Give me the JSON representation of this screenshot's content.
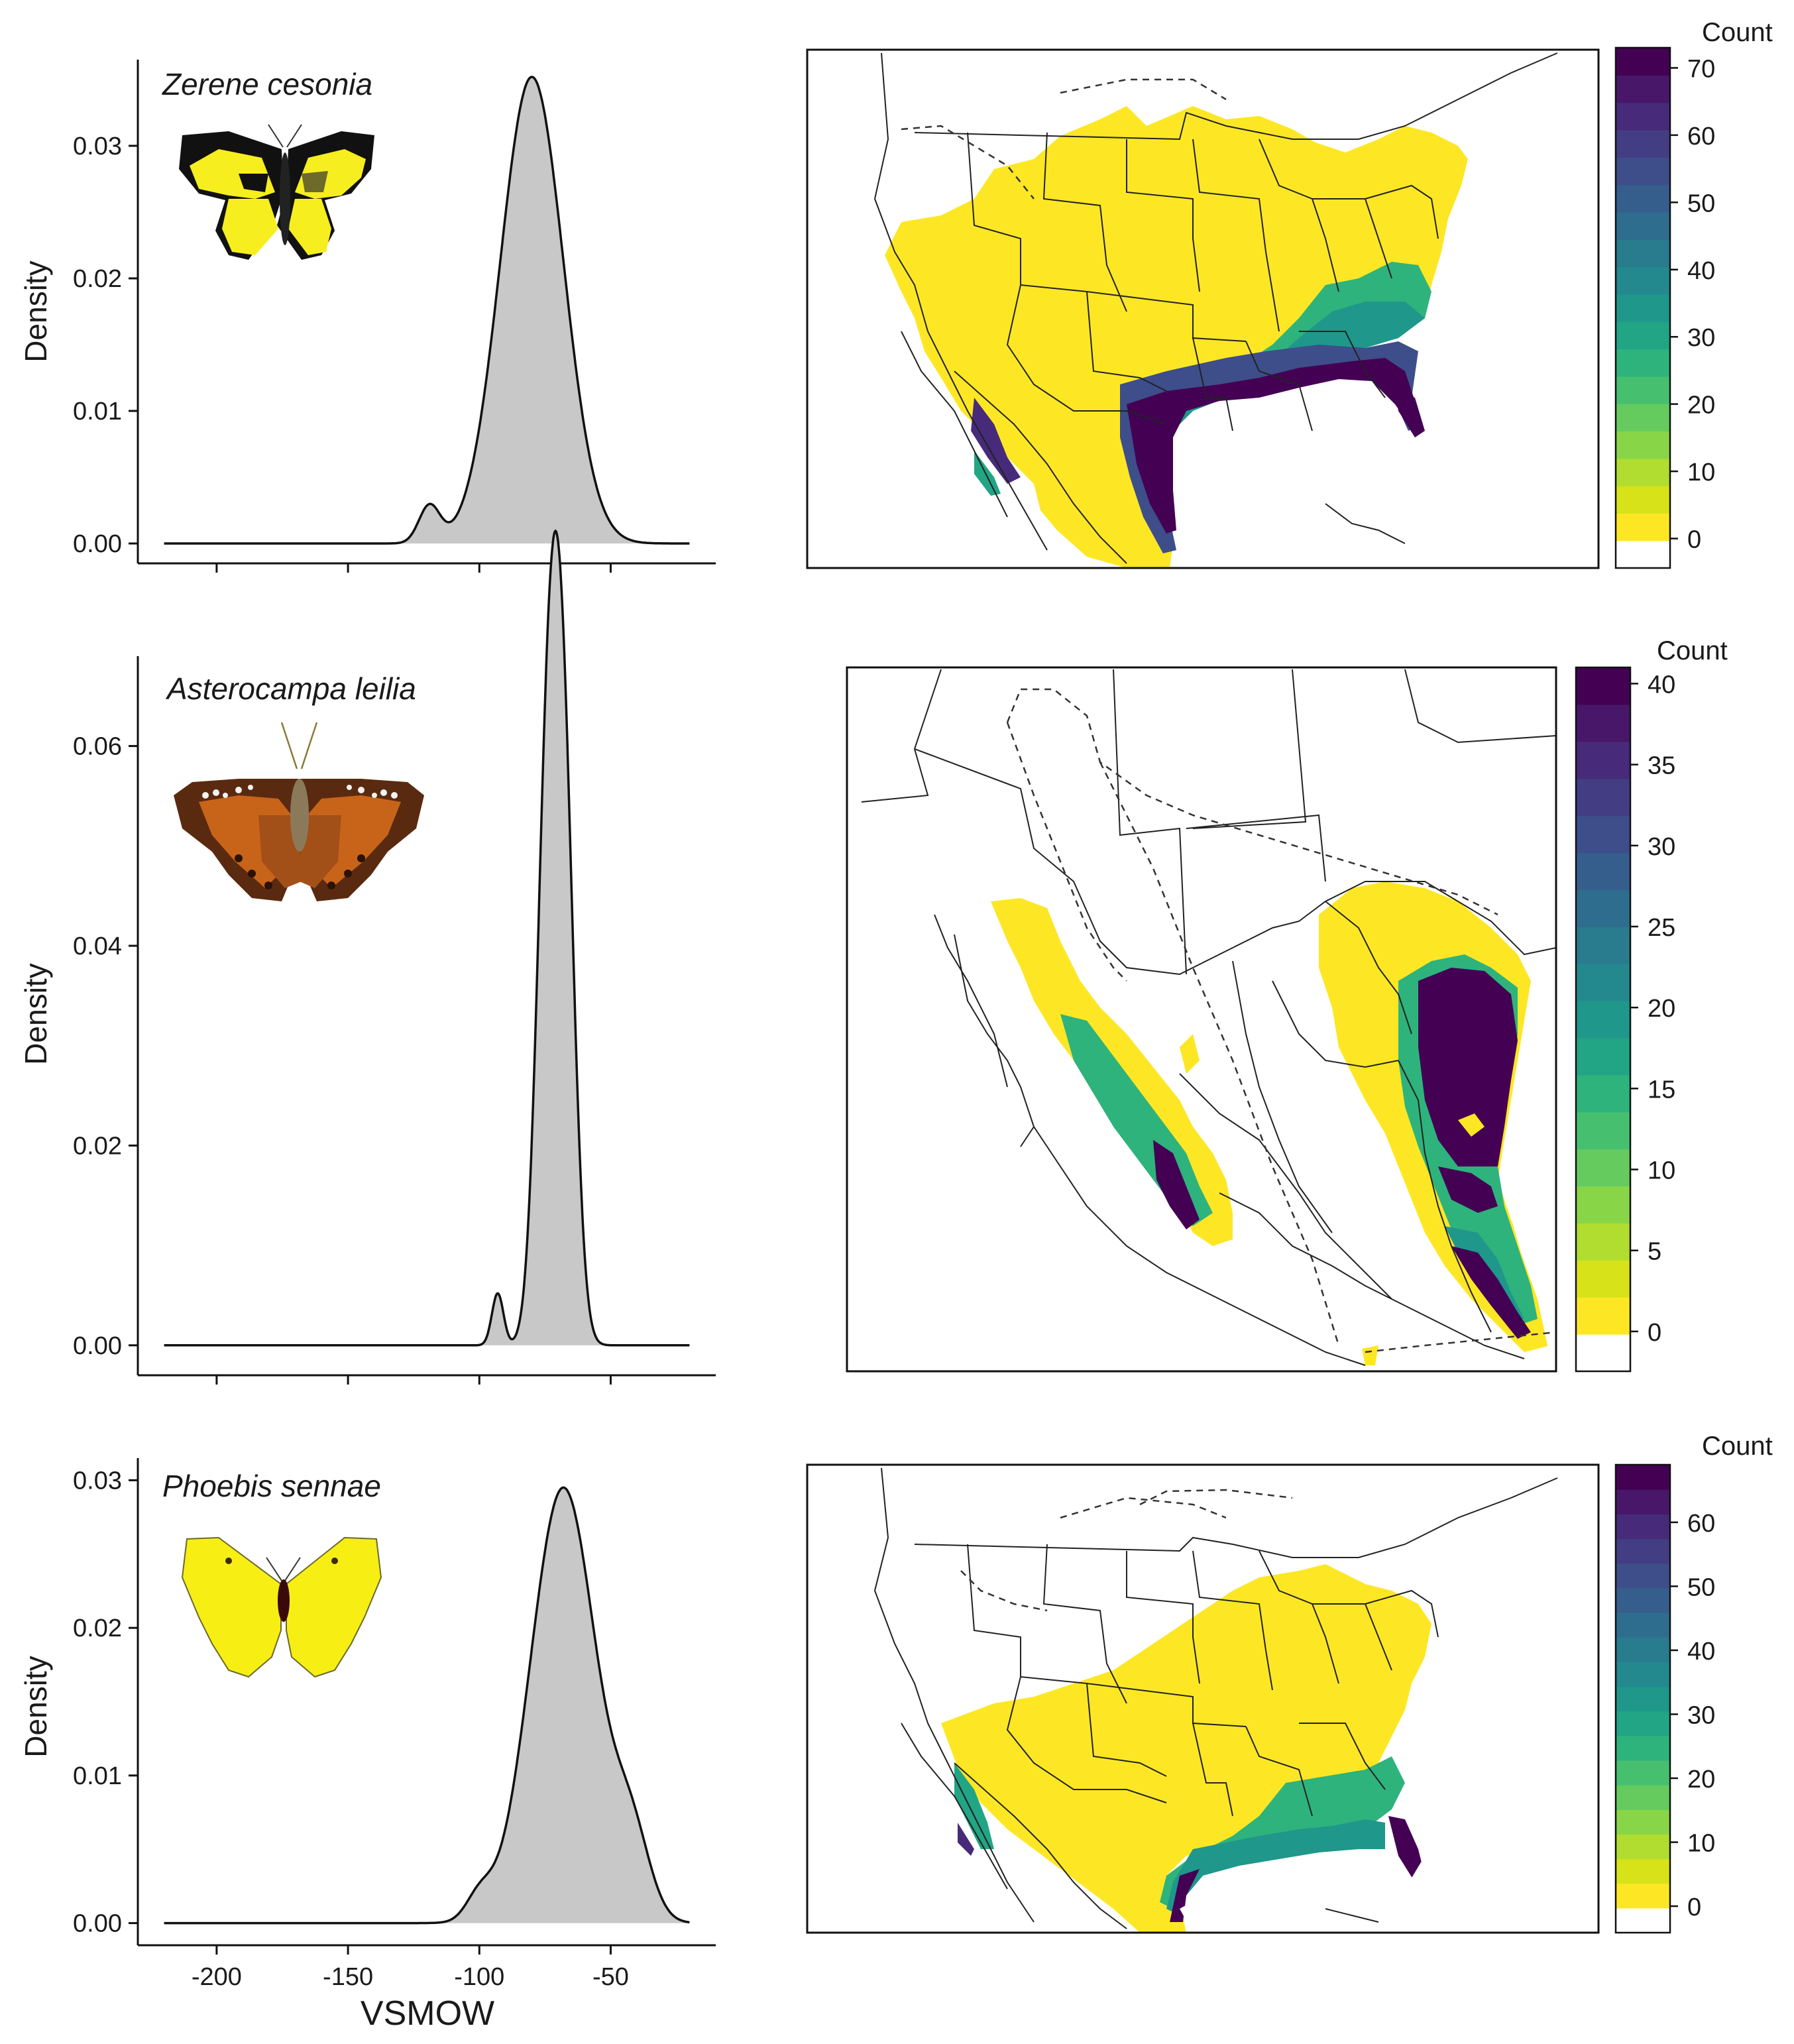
{
  "x_axis_title": "VSMOW",
  "y_axis_title": "Density",
  "colorbar_title": "Count",
  "palette": [
    "#ffffff",
    "#fde725",
    "#d8e219",
    "#b0dd2f",
    "#89d548",
    "#65cb5e",
    "#46c06f",
    "#2eb37c",
    "#21a585",
    "#1f978b",
    "#23898e",
    "#297b8e",
    "#2e6d8e",
    "#355e8d",
    "#3d4e8a",
    "#433d84",
    "#472a7a",
    "#481769",
    "#440154"
  ],
  "chart_data": [
    {
      "type": "area",
      "species": "Zerene cesonia",
      "xlabel": "",
      "ylabel": "Density",
      "xlim": [
        -230,
        -10
      ],
      "ylim": [
        -0.0015,
        0.0365
      ],
      "x_ticks": [
        -200,
        -150,
        -100,
        -50
      ],
      "x_tick_labels": [
        "",
        "",
        "",
        ""
      ],
      "y_ticks": [
        0.0,
        0.01,
        0.02,
        0.03
      ],
      "y_tick_labels": [
        "0.00",
        "0.01",
        "0.02",
        "0.03"
      ],
      "density_x_range": [
        -220,
        -20
      ],
      "components": [
        {
          "mean": -119,
          "sd": 4,
          "peak": 0.0028
        },
        {
          "mean": -80,
          "sd": 12,
          "peak": 0.0352
        }
      ],
      "colorbar": {
        "title": "Count",
        "max": 73,
        "ticks": [
          0,
          10,
          20,
          30,
          40,
          50,
          60,
          70
        ]
      },
      "map_extent": "United States and Mexico"
    },
    {
      "type": "area",
      "species": "Asterocampa leilia",
      "xlabel": "",
      "ylabel": "Density",
      "xlim": [
        -230,
        -10
      ],
      "ylim": [
        -0.003,
        0.069
      ],
      "x_ticks": [
        -200,
        -150,
        -100,
        -50
      ],
      "x_tick_labels": [
        "",
        "",
        "",
        ""
      ],
      "y_ticks": [
        0.0,
        0.02,
        0.04,
        0.06
      ],
      "y_tick_labels": [
        "0.00",
        "0.02",
        "0.04",
        "0.06"
      ],
      "density_x_range": [
        -220,
        -20
      ],
      "components": [
        {
          "mean": -93,
          "sd": 2.2,
          "peak": 0.0052
        },
        {
          "mean": -74,
          "sd": 4.3,
          "peak": 0.052
        },
        {
          "mean": -68,
          "sd": 4.3,
          "peak": 0.052
        }
      ],
      "colorbar": {
        "title": "Count",
        "max": 41,
        "ticks": [
          0,
          5,
          10,
          15,
          20,
          25,
          30,
          35,
          40
        ]
      },
      "map_extent": "Southwestern United States and Mexico"
    },
    {
      "type": "area",
      "species": "Phoebis sennae",
      "xlabel": "VSMOW",
      "ylabel": "Density",
      "xlim": [
        -230,
        -10
      ],
      "ylim": [
        -0.0015,
        0.0315
      ],
      "x_ticks": [
        -200,
        -150,
        -100,
        -50
      ],
      "x_tick_labels": [
        "-200",
        "-150",
        "-100",
        "-50"
      ],
      "y_ticks": [
        0.0,
        0.01,
        0.02,
        0.03
      ],
      "y_tick_labels": [
        "0.00",
        "0.01",
        "0.02",
        "0.03"
      ],
      "density_x_range": [
        -220,
        -20
      ],
      "components": [
        {
          "mean": -100,
          "sd": 5,
          "peak": 0.0016
        },
        {
          "mean": -68,
          "sd": 12.5,
          "peak": 0.0295
        },
        {
          "mean": -42,
          "sd": 7,
          "peak": 0.0052
        }
      ],
      "colorbar": {
        "title": "Count",
        "max": 69,
        "ticks": [
          0,
          10,
          20,
          30,
          40,
          50,
          60
        ]
      },
      "map_extent": "United States and Mexico"
    }
  ]
}
